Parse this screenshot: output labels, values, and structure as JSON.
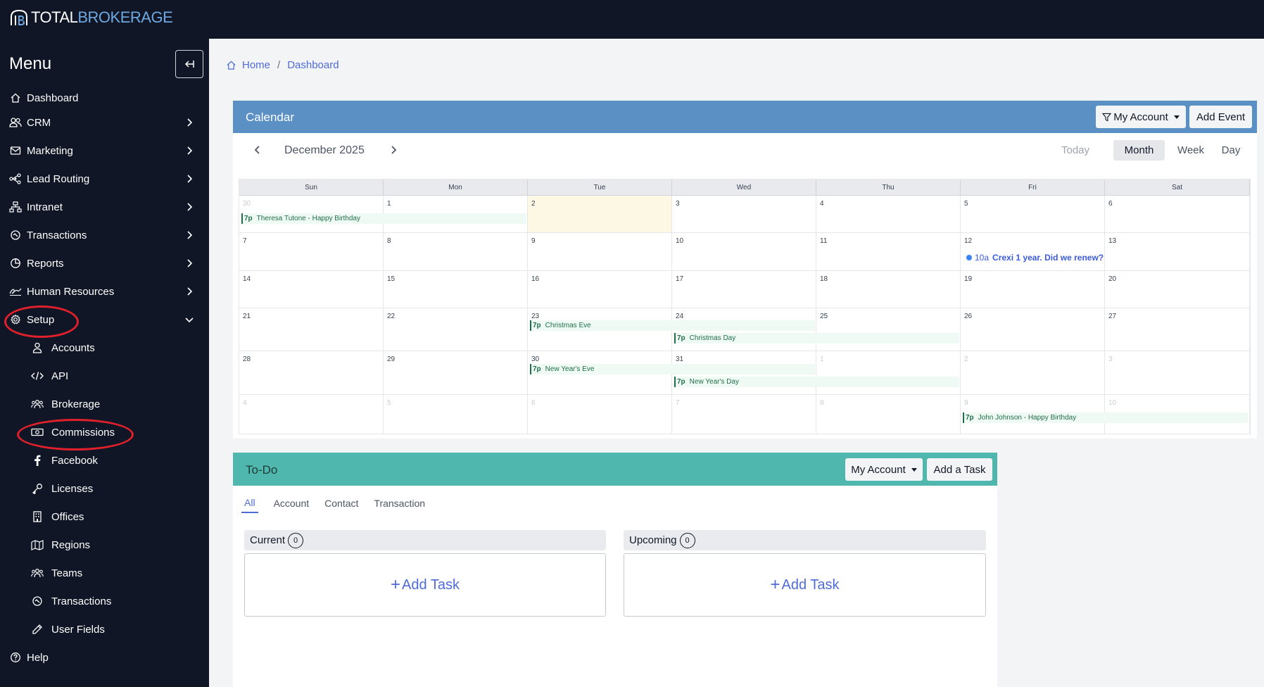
{
  "app": {
    "logo_part1": "TOTAL",
    "logo_part2": "BROKERAGE"
  },
  "sidebar": {
    "title": "Menu",
    "items": [
      {
        "label": "Dashboard",
        "icon": "home-icon",
        "has_chevron": false
      },
      {
        "label": "CRM",
        "icon": "users-icon",
        "has_chevron": true
      },
      {
        "label": "Marketing",
        "icon": "mail-icon",
        "has_chevron": true
      },
      {
        "label": "Lead Routing",
        "icon": "share-nodes-icon",
        "has_chevron": true
      },
      {
        "label": "Intranet",
        "icon": "sitemap-icon",
        "has_chevron": true
      },
      {
        "label": "Transactions",
        "icon": "handshake-icon",
        "has_chevron": true
      },
      {
        "label": "Reports",
        "icon": "chart-pie-icon",
        "has_chevron": true
      },
      {
        "label": "Human Resources",
        "icon": "signature-icon",
        "has_chevron": true
      },
      {
        "label": "Setup",
        "icon": "gear-icon",
        "has_chevron": true,
        "expanded": true
      }
    ],
    "setup_items": [
      {
        "label": "Accounts",
        "icon": "user-icon"
      },
      {
        "label": "API",
        "icon": "code-icon"
      },
      {
        "label": "Brokerage",
        "icon": "people-group-icon"
      },
      {
        "label": "Commissions",
        "icon": "money-bill-icon"
      },
      {
        "label": "Facebook",
        "icon": "facebook-icon"
      },
      {
        "label": "Licenses",
        "icon": "key-icon"
      },
      {
        "label": "Offices",
        "icon": "building-icon"
      },
      {
        "label": "Regions",
        "icon": "map-icon"
      },
      {
        "label": "Teams",
        "icon": "people-group-icon"
      },
      {
        "label": "Transactions",
        "icon": "handshake-icon"
      },
      {
        "label": "User Fields",
        "icon": "pencil-icon"
      }
    ],
    "help": {
      "label": "Help",
      "icon": "question-circle-icon"
    }
  },
  "breadcrumb": {
    "home": "Home",
    "separator": "/",
    "current": "Dashboard"
  },
  "calendar": {
    "title": "Calendar",
    "filter_label": "My Account",
    "add_label": "Add Event",
    "month_label": "December 2025",
    "views": {
      "today": "Today",
      "month": "Month",
      "week": "Week",
      "day": "Day"
    },
    "active_view": "Month",
    "weekdays": [
      "Sun",
      "Mon",
      "Tue",
      "Wed",
      "Thu",
      "Fri",
      "Sat"
    ],
    "weeks": [
      [
        "30",
        "1",
        "2",
        "3",
        "4",
        "5",
        "6"
      ],
      [
        "7",
        "8",
        "9",
        "10",
        "11",
        "12",
        "13"
      ],
      [
        "14",
        "15",
        "16",
        "17",
        "18",
        "19",
        "20"
      ],
      [
        "21",
        "22",
        "23",
        "24",
        "25",
        "26",
        "27"
      ],
      [
        "28",
        "29",
        "30",
        "31",
        "1",
        "2",
        "3"
      ],
      [
        "4",
        "5",
        "6",
        "7",
        "8",
        "9",
        "10"
      ]
    ],
    "other_month": [
      [
        true,
        false,
        false,
        false,
        false,
        false,
        false
      ],
      [
        false,
        false,
        false,
        false,
        false,
        false,
        false
      ],
      [
        false,
        false,
        false,
        false,
        false,
        false,
        false
      ],
      [
        false,
        false,
        false,
        false,
        false,
        false,
        false
      ],
      [
        false,
        false,
        false,
        false,
        true,
        true,
        true
      ],
      [
        true,
        true,
        true,
        true,
        true,
        true,
        true
      ]
    ],
    "today": "2",
    "events": [
      {
        "time": "7p",
        "title": "Theresa Tutone - Happy Birthday"
      },
      {
        "time": "10a",
        "title": "Crexi 1 year. Did we renew?"
      },
      {
        "time": "7p",
        "title": "Christmas Eve"
      },
      {
        "time": "7p",
        "title": "Christmas Day"
      },
      {
        "time": "7p",
        "title": "New Year's Eve"
      },
      {
        "time": "7p",
        "title": "New Year's Day"
      },
      {
        "time": "7p",
        "title": "John Johnson - Happy Birthday"
      }
    ]
  },
  "todo": {
    "title": "To-Do",
    "filter_label": "My Account",
    "add_label": "Add a Task",
    "tabs": [
      "All",
      "Account",
      "Contact",
      "Transaction"
    ],
    "active_tab": "All",
    "current": {
      "label": "Current",
      "count": "0",
      "add": "Add Task"
    },
    "upcoming": {
      "label": "Upcoming",
      "count": "0",
      "add": "Add Task"
    }
  },
  "colors": {
    "sidebar_bg": "#101626",
    "calendar_header": "#5a90c4",
    "todo_header": "#4fb7ad",
    "link": "#4f6bd8",
    "annotation_ring": "#e0202a"
  }
}
